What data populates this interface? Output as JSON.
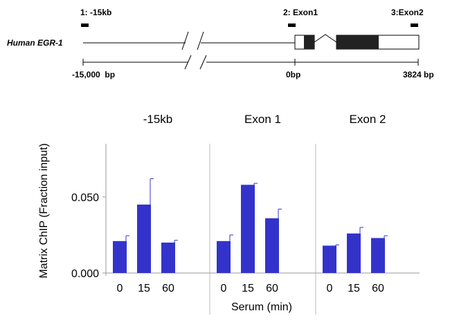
{
  "gene_map": {
    "gene_label": "Human EGR-1",
    "probes": [
      {
        "label": "1: -15kb"
      },
      {
        "label": "2: Exon1"
      },
      {
        "label": "3:Exon2"
      }
    ],
    "scale_left": "-15,000  bp",
    "scale_mid": "0bp",
    "scale_right": "3824 bp"
  },
  "chart_data": {
    "type": "bar",
    "ylabel": "Matrix ChIP (Fraction input)",
    "xlabel": "Serum (min)",
    "ylim": [
      0,
      0.085
    ],
    "yticks": [
      0.0,
      0.05
    ],
    "ytick_labels": [
      "0.000",
      "0.050"
    ],
    "grid": false,
    "bar_color": "#3333cc",
    "panels": [
      {
        "title": "-15kb",
        "categories": [
          "0",
          "15",
          "60"
        ],
        "values": [
          0.021,
          0.045,
          0.02
        ],
        "errors": [
          0.0035,
          0.017,
          0.0015
        ]
      },
      {
        "title": "Exon 1",
        "categories": [
          "0",
          "15",
          "60"
        ],
        "values": [
          0.021,
          0.058,
          0.036
        ],
        "errors": [
          0.004,
          0.001,
          0.006
        ]
      },
      {
        "title": "Exon 2",
        "categories": [
          "0",
          "15",
          "60"
        ],
        "values": [
          0.018,
          0.026,
          0.023
        ],
        "errors": [
          0.0005,
          0.004,
          0.0015
        ]
      }
    ]
  }
}
